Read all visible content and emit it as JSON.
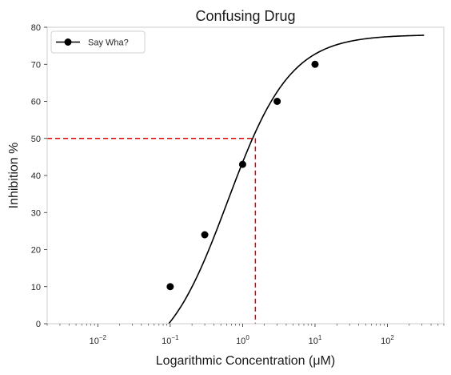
{
  "chart_data": {
    "type": "line",
    "title": "Confusing Drug",
    "xlabel": "Logarithmic Concentration (μM)",
    "ylabel": "Inhibition %",
    "xscale": "log",
    "xlim": [
      0.002,
      600
    ],
    "ylim": [
      0,
      80
    ],
    "yticks": [
      0,
      10,
      20,
      30,
      40,
      50,
      60,
      70,
      80
    ],
    "xticks": [
      {
        "value": 0.01,
        "base": "10",
        "exp": "−2"
      },
      {
        "value": 0.1,
        "base": "10",
        "exp": "−1"
      },
      {
        "value": 1,
        "base": "10",
        "exp": "0"
      },
      {
        "value": 10,
        "base": "10",
        "exp": "1"
      },
      {
        "value": 100,
        "base": "10",
        "exp": "2"
      }
    ],
    "grid": false,
    "legend_position": "top-left",
    "series": [
      {
        "name": "Say Wha?",
        "color": "#000000",
        "marker": "circle",
        "points": [
          {
            "x": 0.1,
            "y": 10
          },
          {
            "x": 0.3,
            "y": 24
          },
          {
            "x": 1,
            "y": 43
          },
          {
            "x": 3,
            "y": 60
          },
          {
            "x": 10,
            "y": 70
          }
        ],
        "fit_curve": {
          "model": "hill",
          "bottom": -12,
          "top": 78,
          "ec50": 0.62,
          "hill": 1.0,
          "x_start": 0.0085,
          "x_end": 320
        }
      }
    ],
    "annotations": [
      {
        "type": "dashed-guide",
        "color": "#e00000",
        "x": 1.5,
        "y": 50
      }
    ]
  }
}
